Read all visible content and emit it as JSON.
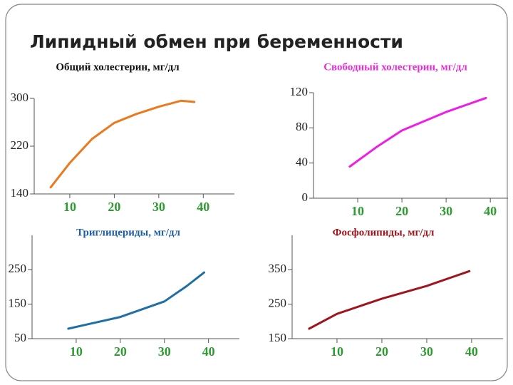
{
  "title": "Липидный обмен при беременности",
  "chart_data": [
    {
      "type": "line",
      "title": "Общий холестерин, мг/дл",
      "title_color": "#111111",
      "color": "#ea7a1f",
      "x": [
        5.7,
        10,
        15,
        20,
        25,
        30,
        35,
        38
      ],
      "values": [
        151,
        192,
        232,
        259,
        274,
        286,
        296,
        294
      ],
      "xlim": [
        2,
        47
      ],
      "ylim": [
        140,
        300
      ],
      "xticks": [
        10,
        20,
        30,
        40
      ],
      "yticks": [
        140,
        220,
        300
      ]
    },
    {
      "type": "line",
      "title": "Свободный холестерин, мг/дл",
      "title_color": "#e52fd6",
      "color": "#ee1ee6",
      "x": [
        8.2,
        14.5,
        20,
        30,
        39
      ],
      "values": [
        36,
        59,
        77,
        98,
        114
      ],
      "xlim": [
        0,
        44
      ],
      "ylim": [
        0,
        120
      ],
      "xticks": [
        10,
        20,
        30,
        40
      ],
      "yticks": [
        0,
        40,
        80,
        120
      ]
    },
    {
      "type": "line",
      "title": "Триглицериды, мг/дл",
      "title_color": "#1f5fa8",
      "color": "#1f6ea6",
      "x": [
        8.2,
        20,
        30,
        35,
        39
      ],
      "values": [
        79,
        113,
        158,
        202,
        242
      ],
      "xlim": [
        0,
        47
      ],
      "ylim": [
        50,
        350
      ],
      "xticks": [
        10,
        20,
        30,
        40
      ],
      "yticks": [
        50,
        150,
        250
      ]
    },
    {
      "type": "line",
      "title": "Фосфолипиды, мг/дл",
      "title_color": "#a0151c",
      "color": "#a0151c",
      "x": [
        3.8,
        10,
        20,
        30,
        39.5
      ],
      "values": [
        179,
        222,
        266,
        303,
        346
      ],
      "xlim": [
        0,
        47
      ],
      "ylim": [
        150,
        450
      ],
      "xticks": [
        10,
        20,
        30,
        40
      ],
      "yticks": [
        150,
        250,
        350
      ]
    }
  ]
}
